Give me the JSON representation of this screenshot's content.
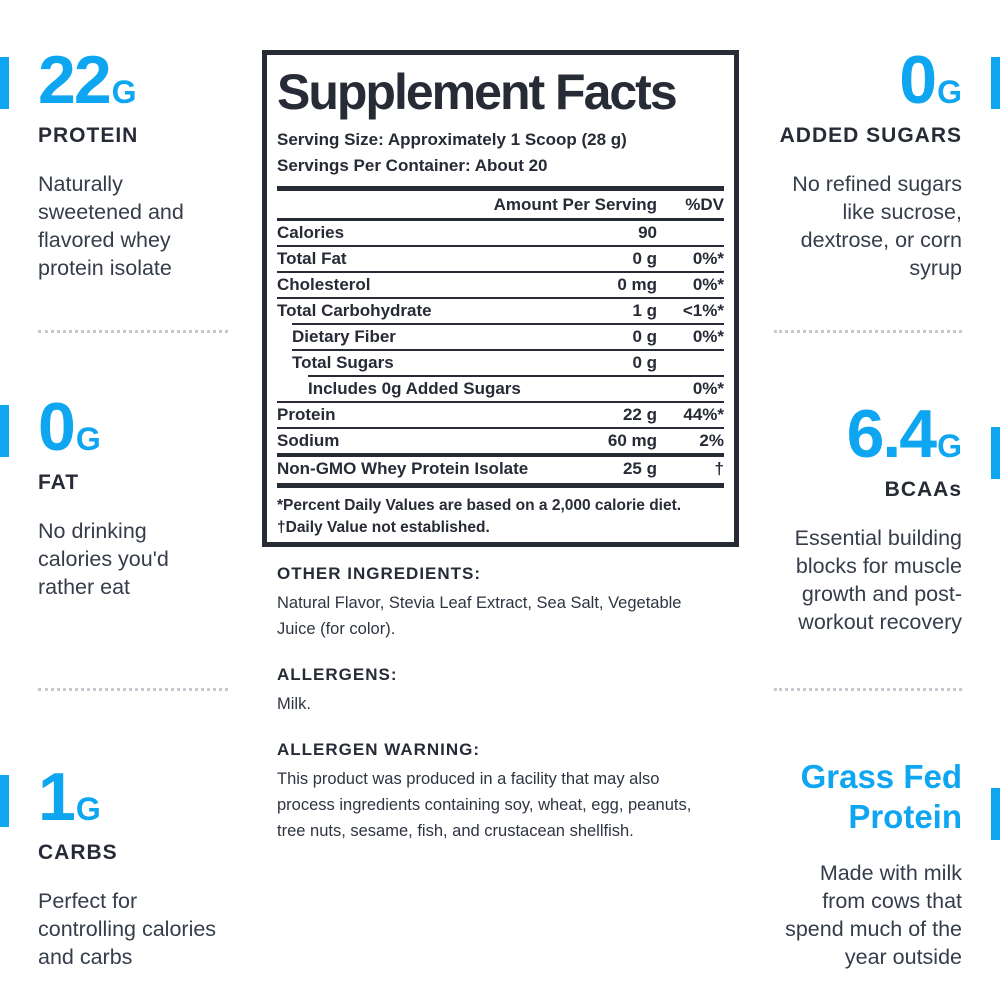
{
  "accent_color": "#0ea6f0",
  "ink_color": "#272b35",
  "left_column": {
    "stats": [
      {
        "value": "22",
        "unit": "G",
        "label": "PROTEIN",
        "description": "Naturally\nsweetened and\nflavored whey\nprotein isolate"
      },
      {
        "value": "0",
        "unit": "G",
        "label": "FAT",
        "description": "No drinking\ncalories you'd\nrather eat"
      },
      {
        "value": "1",
        "unit": "G",
        "label": "CARBS",
        "description": "Perfect for\ncontrolling calories\nand carbs"
      }
    ]
  },
  "right_column": {
    "stats": [
      {
        "value": "0",
        "unit": "G",
        "label": "ADDED SUGARS",
        "description": "No refined sugars\nlike sucrose,\ndextrose, or corn\nsyrup"
      },
      {
        "value": "6.4",
        "unit": "G",
        "label": "BCAAs",
        "description": "Essential building\nblocks for muscle\ngrowth and post-\nworkout recovery"
      },
      {
        "heading": "Grass Fed\nProtein",
        "description": "Made with milk\nfrom cows that\nspend much of the\nyear outside"
      }
    ]
  },
  "facts": {
    "title": "Supplement Facts",
    "serving_size": "Serving Size: Approximately 1 Scoop (28 g)",
    "servings_per_container": "Servings Per Container: About 20",
    "col_amount": "Amount Per Serving",
    "col_dv": "%DV",
    "rows": [
      {
        "label": "Calories",
        "amount": "90",
        "dv": "",
        "indent": 0,
        "sep": "none"
      },
      {
        "label": "Total Fat",
        "amount": "0 g",
        "dv": "0%*",
        "indent": 0,
        "sep": "thin"
      },
      {
        "label": "Cholesterol",
        "amount": "0 mg",
        "dv": "0%*",
        "indent": 0,
        "sep": "thin"
      },
      {
        "label": "Total Carbohydrate",
        "amount": "1 g",
        "dv": "<1%*",
        "indent": 0,
        "sep": "thin"
      },
      {
        "label": "Dietary Fiber",
        "amount": "0 g",
        "dv": "0%*",
        "indent": 1,
        "sep": "ind1"
      },
      {
        "label": "Total Sugars",
        "amount": "0 g",
        "dv": "",
        "indent": 1,
        "sep": "ind1"
      },
      {
        "label": "Includes 0g Added Sugars",
        "amount": "",
        "dv": "0%*",
        "indent": 2,
        "sep": "ind2"
      },
      {
        "label": "Protein",
        "amount": "22 g",
        "dv": "44%*",
        "indent": 0,
        "sep": "thin"
      },
      {
        "label": "Sodium",
        "amount": "60 mg",
        "dv": "2%",
        "indent": 0,
        "sep": "thin"
      },
      {
        "label": "Non-GMO Whey Protein Isolate",
        "amount": "25 g",
        "dv": "†",
        "indent": 0,
        "sep": "medium"
      }
    ],
    "footnotes": [
      "*Percent Daily Values are based on a 2,000 calorie diet.",
      "†Daily Value not established."
    ]
  },
  "sections": [
    {
      "heading": "OTHER INGREDIENTS:",
      "body": "Natural Flavor, Stevia Leaf Extract, Sea Salt, Vegetable\nJuice (for color)."
    },
    {
      "heading": "ALLERGENS:",
      "body": "Milk."
    },
    {
      "heading": "ALLERGEN WARNING:",
      "body": "This product was produced in a facility that may also\nprocess ingredients containing soy, wheat, egg, peanuts,\ntree nuts, sesame, fish, and crustacean shellfish."
    }
  ]
}
